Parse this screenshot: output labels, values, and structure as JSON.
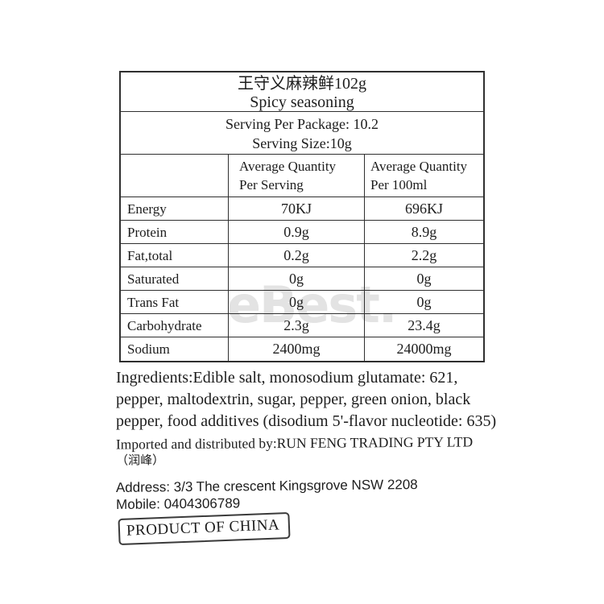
{
  "colors": {
    "ink": "#1d1d1d",
    "table_border": "#2f2f2f",
    "watermark_gray": "#e3e3e3"
  },
  "watermark": {
    "text": "eBest."
  },
  "label": {
    "title_cn": "王守义麻辣鲜102g",
    "title_en": "Spicy seasoning",
    "serving_per_package": "Serving Per Package:  10.2",
    "serving_size": "Serving Size:10g"
  },
  "nutrition_table": {
    "col_serving": {
      "line1": "Average Quantity",
      "line2": "Per Serving"
    },
    "col_100ml": {
      "line1": "Average Quantity",
      "line2": "Per 100ml"
    },
    "rows": [
      {
        "label": "Energy",
        "per_serving": "70KJ",
        "per_100ml": "696KJ"
      },
      {
        "label": "Protein",
        "per_serving": "0.9g",
        "per_100ml": "8.9g"
      },
      {
        "label": "Fat,total",
        "per_serving": "0.2g",
        "per_100ml": "2.2g"
      },
      {
        "label": "Saturated",
        "per_serving": "0g",
        "per_100ml": "0g"
      },
      {
        "label": "Trans Fat",
        "per_serving": "0g",
        "per_100ml": "0g"
      },
      {
        "label": "Carbohydrate",
        "per_serving": "2.3g",
        "per_100ml": "23.4g"
      },
      {
        "label": "Sodium",
        "per_serving": "2400mg",
        "per_100ml": "24000mg"
      }
    ]
  },
  "ingredients": {
    "lines": [
      "Ingredients:Edible salt, monosodium glutamate: 621,",
      "pepper, maltodextrin, sugar, pepper, green onion, black",
      "pepper, food additives (disodium 5'-flavor nucleotide: 635)"
    ]
  },
  "importer": {
    "line1": "Imported and distributed by:RUN FENG TRADING PTY LTD",
    "line2": "（润峰）"
  },
  "contact": {
    "address": "Address: 3/3 The crescent Kingsgrove NSW 2208",
    "mobile": "Mobile: 0404306789"
  },
  "origin": {
    "text": "PRODUCT OF CHINA"
  }
}
